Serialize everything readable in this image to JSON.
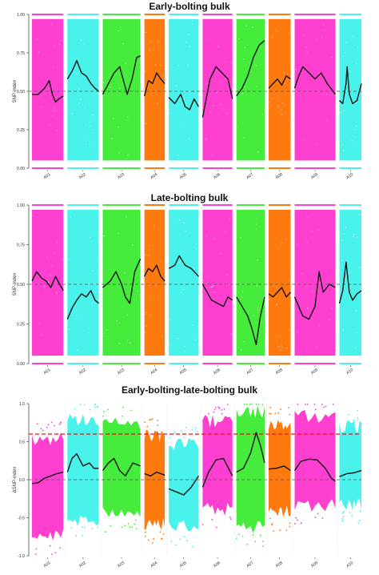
{
  "colors": {
    "magenta": "#ff3fd0",
    "cyan": "#49f2ea",
    "green": "#45ec3c",
    "orange": "#ff7a0e",
    "index_line": "#111111",
    "threshold_line": "#e4141d",
    "reference_line": "#555555"
  },
  "chart_data": [
    {
      "type": "scatter",
      "title": "Early-bolting bulk",
      "xlabel": "",
      "ylabel": "SNP-index",
      "categories": [
        "A01",
        "A02",
        "A03",
        "A04",
        "A05",
        "A06",
        "A07",
        "A08",
        "A09",
        "A10"
      ],
      "chromosome_colors": [
        "magenta",
        "cyan",
        "green",
        "orange",
        "cyan",
        "magenta",
        "green",
        "orange",
        "magenta",
        "cyan"
      ],
      "chromosome_lengths": [
        1.0,
        1.0,
        1.2,
        0.65,
        0.95,
        0.95,
        0.9,
        0.7,
        1.3,
        0.7
      ],
      "ylim": [
        0,
        1
      ],
      "yticks": [
        "0.00",
        "0.25",
        "0.50",
        "0.75",
        "1.00"
      ],
      "reference_lines": [
        0.5
      ],
      "grid": false,
      "series": [
        {
          "values": [
            [
              [
                0.0,
                0.48
              ],
              [
                0.2,
                0.48
              ],
              [
                0.4,
                0.52
              ],
              [
                0.55,
                0.57
              ],
              [
                0.65,
                0.48
              ],
              [
                0.75,
                0.43
              ],
              [
                0.85,
                0.45
              ],
              [
                1.0,
                0.47
              ]
            ],
            [
              [
                0.0,
                0.58
              ],
              [
                0.15,
                0.63
              ],
              [
                0.3,
                0.7
              ],
              [
                0.45,
                0.62
              ],
              [
                0.6,
                0.6
              ],
              [
                0.75,
                0.55
              ],
              [
                0.88,
                0.52
              ],
              [
                1.0,
                0.5
              ]
            ],
            [
              [
                0.0,
                0.48
              ],
              [
                0.15,
                0.55
              ],
              [
                0.3,
                0.62
              ],
              [
                0.45,
                0.66
              ],
              [
                0.55,
                0.57
              ],
              [
                0.65,
                0.48
              ],
              [
                0.78,
                0.58
              ],
              [
                0.9,
                0.72
              ],
              [
                1.0,
                0.73
              ]
            ],
            [
              [
                0.0,
                0.47
              ],
              [
                0.2,
                0.57
              ],
              [
                0.4,
                0.55
              ],
              [
                0.6,
                0.62
              ],
              [
                0.8,
                0.58
              ],
              [
                1.0,
                0.55
              ]
            ],
            [
              [
                0.0,
                0.46
              ],
              [
                0.2,
                0.42
              ],
              [
                0.4,
                0.48
              ],
              [
                0.55,
                0.4
              ],
              [
                0.7,
                0.38
              ],
              [
                0.85,
                0.45
              ],
              [
                1.0,
                0.4
              ]
            ],
            [
              [
                0.0,
                0.33
              ],
              [
                0.12,
                0.45
              ],
              [
                0.25,
                0.58
              ],
              [
                0.45,
                0.66
              ],
              [
                0.65,
                0.62
              ],
              [
                0.85,
                0.58
              ],
              [
                1.0,
                0.45
              ]
            ],
            [
              [
                0.0,
                0.47
              ],
              [
                0.2,
                0.52
              ],
              [
                0.4,
                0.6
              ],
              [
                0.6,
                0.72
              ],
              [
                0.8,
                0.8
              ],
              [
                1.0,
                0.83
              ]
            ],
            [
              [
                0.0,
                0.52
              ],
              [
                0.2,
                0.55
              ],
              [
                0.4,
                0.58
              ],
              [
                0.6,
                0.54
              ],
              [
                0.8,
                0.6
              ],
              [
                1.0,
                0.58
              ]
            ],
            [
              [
                0.0,
                0.52
              ],
              [
                0.1,
                0.6
              ],
              [
                0.2,
                0.66
              ],
              [
                0.35,
                0.62
              ],
              [
                0.5,
                0.58
              ],
              [
                0.65,
                0.62
              ],
              [
                0.8,
                0.55
              ],
              [
                1.0,
                0.48
              ]
            ],
            [
              [
                0.0,
                0.44
              ],
              [
                0.15,
                0.42
              ],
              [
                0.3,
                0.55
              ],
              [
                0.35,
                0.66
              ],
              [
                0.45,
                0.48
              ],
              [
                0.6,
                0.42
              ],
              [
                0.8,
                0.44
              ],
              [
                1.0,
                0.55
              ]
            ]
          ]
        }
      ]
    },
    {
      "type": "scatter",
      "title": "Late-bolting bulk",
      "xlabel": "",
      "ylabel": "SNP-index",
      "categories": [
        "A01",
        "A02",
        "A03",
        "A04",
        "A05",
        "A06",
        "A07",
        "A08",
        "A09",
        "A10"
      ],
      "chromosome_colors": [
        "magenta",
        "cyan",
        "green",
        "orange",
        "cyan",
        "magenta",
        "green",
        "orange",
        "magenta",
        "cyan"
      ],
      "chromosome_lengths": [
        1.0,
        1.0,
        1.2,
        0.65,
        0.95,
        0.95,
        0.9,
        0.7,
        1.3,
        0.7
      ],
      "ylim": [
        0,
        1
      ],
      "yticks": [
        "0.00",
        "0.25",
        "0.50",
        "0.75",
        "1.00"
      ],
      "reference_lines": [
        0.5
      ],
      "grid": false,
      "series": [
        {
          "values": [
            [
              [
                0.0,
                0.52
              ],
              [
                0.15,
                0.58
              ],
              [
                0.3,
                0.54
              ],
              [
                0.45,
                0.52
              ],
              [
                0.6,
                0.48
              ],
              [
                0.75,
                0.55
              ],
              [
                0.88,
                0.5
              ],
              [
                1.0,
                0.46
              ]
            ],
            [
              [
                0.0,
                0.28
              ],
              [
                0.15,
                0.35
              ],
              [
                0.3,
                0.4
              ],
              [
                0.45,
                0.44
              ],
              [
                0.6,
                0.42
              ],
              [
                0.75,
                0.46
              ],
              [
                0.88,
                0.4
              ],
              [
                1.0,
                0.38
              ]
            ],
            [
              [
                0.0,
                0.48
              ],
              [
                0.2,
                0.52
              ],
              [
                0.35,
                0.58
              ],
              [
                0.5,
                0.5
              ],
              [
                0.6,
                0.42
              ],
              [
                0.72,
                0.38
              ],
              [
                0.85,
                0.58
              ],
              [
                1.0,
                0.66
              ]
            ],
            [
              [
                0.0,
                0.55
              ],
              [
                0.2,
                0.6
              ],
              [
                0.4,
                0.58
              ],
              [
                0.6,
                0.62
              ],
              [
                0.8,
                0.55
              ],
              [
                1.0,
                0.52
              ]
            ],
            [
              [
                0.0,
                0.6
              ],
              [
                0.2,
                0.62
              ],
              [
                0.35,
                0.68
              ],
              [
                0.55,
                0.62
              ],
              [
                0.75,
                0.6
              ],
              [
                1.0,
                0.55
              ]
            ],
            [
              [
                0.0,
                0.5
              ],
              [
                0.15,
                0.45
              ],
              [
                0.3,
                0.4
              ],
              [
                0.5,
                0.38
              ],
              [
                0.7,
                0.36
              ],
              [
                0.85,
                0.42
              ],
              [
                1.0,
                0.4
              ]
            ],
            [
              [
                0.0,
                0.42
              ],
              [
                0.2,
                0.36
              ],
              [
                0.4,
                0.3
              ],
              [
                0.55,
                0.22
              ],
              [
                0.7,
                0.12
              ],
              [
                0.85,
                0.3
              ],
              [
                1.0,
                0.42
              ]
            ],
            [
              [
                0.0,
                0.44
              ],
              [
                0.2,
                0.42
              ],
              [
                0.4,
                0.45
              ],
              [
                0.6,
                0.48
              ],
              [
                0.8,
                0.42
              ],
              [
                1.0,
                0.45
              ]
            ],
            [
              [
                0.0,
                0.42
              ],
              [
                0.1,
                0.36
              ],
              [
                0.2,
                0.3
              ],
              [
                0.35,
                0.28
              ],
              [
                0.5,
                0.36
              ],
              [
                0.6,
                0.58
              ],
              [
                0.7,
                0.45
              ],
              [
                0.85,
                0.5
              ],
              [
                1.0,
                0.48
              ]
            ],
            [
              [
                0.0,
                0.38
              ],
              [
                0.15,
                0.46
              ],
              [
                0.3,
                0.64
              ],
              [
                0.45,
                0.45
              ],
              [
                0.6,
                0.4
              ],
              [
                0.8,
                0.44
              ],
              [
                1.0,
                0.46
              ]
            ]
          ]
        }
      ]
    },
    {
      "type": "scatter",
      "title": "Early-bolting-late-bolting bulk",
      "xlabel": "",
      "ylabel": "ΔSNP-index",
      "categories": [
        "A01",
        "A02",
        "A03",
        "A04",
        "A05",
        "A06",
        "A07",
        "A08",
        "A09",
        "A10"
      ],
      "chromosome_colors": [
        "magenta",
        "cyan",
        "green",
        "orange",
        "cyan",
        "magenta",
        "green",
        "orange",
        "magenta",
        "cyan"
      ],
      "chromosome_lengths": [
        1.0,
        1.0,
        1.2,
        0.65,
        0.95,
        0.95,
        0.9,
        0.7,
        1.3,
        0.7
      ],
      "ylim": [
        -1,
        1
      ],
      "yticks": [
        "-1.0",
        "-0.5",
        "0.0",
        "0.5",
        "1.0"
      ],
      "reference_lines": [
        0.0
      ],
      "threshold_lines": [
        0.6
      ],
      "grid": false,
      "series": [
        {
          "values": [
            [
              [
                0.0,
                -0.05
              ],
              [
                0.2,
                -0.04
              ],
              [
                0.4,
                0.02
              ],
              [
                0.6,
                0.05
              ],
              [
                0.8,
                0.08
              ],
              [
                1.0,
                0.1
              ]
            ],
            [
              [
                0.0,
                0.1
              ],
              [
                0.15,
                0.28
              ],
              [
                0.3,
                0.34
              ],
              [
                0.5,
                0.18
              ],
              [
                0.7,
                0.22
              ],
              [
                0.85,
                0.15
              ],
              [
                1.0,
                0.15
              ]
            ],
            [
              [
                0.0,
                0.12
              ],
              [
                0.15,
                0.22
              ],
              [
                0.3,
                0.28
              ],
              [
                0.45,
                0.12
              ],
              [
                0.6,
                0.05
              ],
              [
                0.8,
                0.22
              ],
              [
                1.0,
                0.18
              ]
            ],
            [
              [
                0.0,
                0.08
              ],
              [
                0.3,
                0.05
              ],
              [
                0.6,
                0.1
              ],
              [
                1.0,
                0.06
              ]
            ],
            [
              [
                0.0,
                -0.12
              ],
              [
                0.25,
                -0.16
              ],
              [
                0.5,
                -0.2
              ],
              [
                0.75,
                -0.1
              ],
              [
                1.0,
                0.05
              ]
            ],
            [
              [
                0.0,
                -0.1
              ],
              [
                0.2,
                0.1
              ],
              [
                0.45,
                0.26
              ],
              [
                0.7,
                0.28
              ],
              [
                1.0,
                0.05
              ]
            ],
            [
              [
                0.0,
                0.1
              ],
              [
                0.25,
                0.15
              ],
              [
                0.5,
                0.35
              ],
              [
                0.7,
                0.62
              ],
              [
                0.85,
                0.45
              ],
              [
                1.0,
                0.22
              ]
            ],
            [
              [
                0.0,
                0.14
              ],
              [
                0.35,
                0.15
              ],
              [
                0.7,
                0.18
              ],
              [
                1.0,
                0.12
              ]
            ],
            [
              [
                0.0,
                0.12
              ],
              [
                0.15,
                0.24
              ],
              [
                0.35,
                0.27
              ],
              [
                0.55,
                0.26
              ],
              [
                0.75,
                0.15
              ],
              [
                0.9,
                0.02
              ],
              [
                1.0,
                -0.02
              ]
            ],
            [
              [
                0.0,
                0.04
              ],
              [
                0.35,
                0.08
              ],
              [
                0.65,
                0.09
              ],
              [
                1.0,
                0.12
              ]
            ]
          ]
        }
      ]
    }
  ]
}
